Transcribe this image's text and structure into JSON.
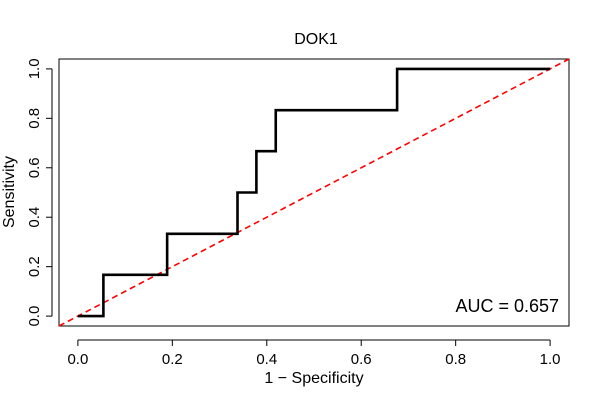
{
  "chart_data": {
    "type": "line",
    "title": "DOK1",
    "xlabel": "1 − Specificity",
    "ylabel": "Sensitivity",
    "xlim": [
      -0.04,
      1.04
    ],
    "ylim": [
      -0.04,
      1.04
    ],
    "xticks": [
      0.0,
      0.2,
      0.4,
      0.6,
      0.8,
      1.0
    ],
    "xtick_labels": [
      "0.0",
      "0.2",
      "0.4",
      "0.6",
      "0.8",
      "1.0"
    ],
    "yticks": [
      0.0,
      0.2,
      0.4,
      0.6,
      0.8,
      1.0
    ],
    "ytick_labels": [
      "0.0",
      "0.2",
      "0.4",
      "0.6",
      "0.8",
      "1.0"
    ],
    "grid": false,
    "series": [
      {
        "name": "ROC curve",
        "color": "#000000",
        "style": "solid",
        "x": [
          0.0,
          0.054,
          0.054,
          0.189,
          0.189,
          0.338,
          0.338,
          0.378,
          0.378,
          0.419,
          0.419,
          0.676,
          0.676,
          1.0
        ],
        "y": [
          0.0,
          0.0,
          0.167,
          0.167,
          0.333,
          0.333,
          0.5,
          0.5,
          0.667,
          0.667,
          0.833,
          0.833,
          1.0,
          1.0
        ]
      },
      {
        "name": "Reference diagonal",
        "color": "#ff0000",
        "style": "dashed",
        "x": [
          -0.04,
          1.04
        ],
        "y": [
          -0.04,
          1.04
        ]
      }
    ],
    "annotations": [
      {
        "text": "AUC = 0.657",
        "placement": "bottom-right"
      }
    ]
  }
}
